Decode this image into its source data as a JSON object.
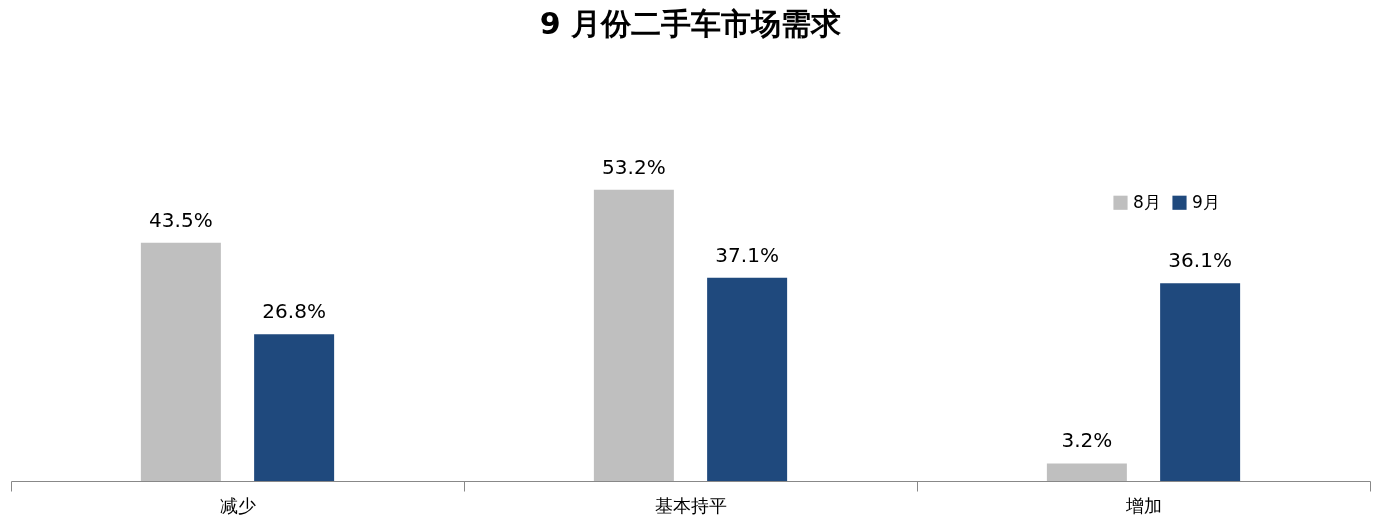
{
  "chart_data": {
    "type": "bar",
    "title": "9 月份二手车市场需求",
    "categories": [
      "减少",
      "基本持平",
      "增加"
    ],
    "series": [
      {
        "name": "8月",
        "color": "#bfbfbf",
        "values": [
          43.5,
          53.2,
          3.2
        ],
        "value_labels": [
          "43.5%",
          "53.2%",
          "3.2%"
        ]
      },
      {
        "name": "9月",
        "color": "#1f497d",
        "values": [
          26.8,
          37.1,
          36.1
        ],
        "value_labels": [
          "26.8%",
          "37.1%",
          "36.1%"
        ]
      }
    ],
    "legend": "top right",
    "grid": false
  }
}
